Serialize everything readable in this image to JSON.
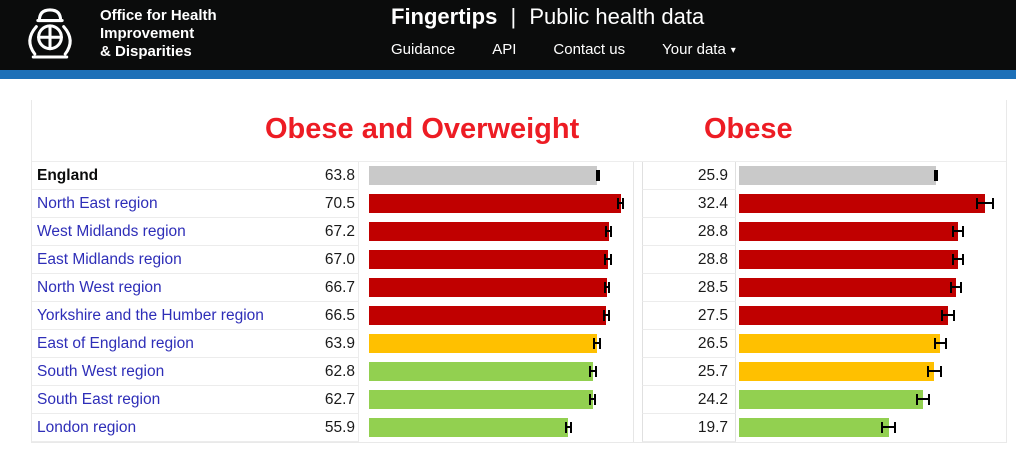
{
  "header": {
    "org_name_lines": [
      "Office for Health",
      "Improvement",
      "& Disparities"
    ],
    "site_title": "Fingertips",
    "title_separator": "|",
    "site_subtitle": "Public health data",
    "nav": [
      {
        "label": "Guidance"
      },
      {
        "label": "API"
      },
      {
        "label": "Contact us"
      },
      {
        "label": "Your data",
        "caret": "▾"
      }
    ]
  },
  "colors": {
    "header_background": "#0b0c0c",
    "accent_blue": "#1d70b8",
    "title_red": "#ed1c24",
    "link_blue": "#2e2eb8",
    "benchmark": "#c9c9c9",
    "worse": "#c00000",
    "similar": "#ffc000",
    "better": "#92d050",
    "error_bar": "#000000"
  },
  "chart_data": [
    {
      "type": "bar",
      "orientation": "horizontal",
      "title": "Obese and Overweight",
      "axis_max": 74,
      "categories": [
        "England",
        "North East region",
        "West Midlands region",
        "East Midlands region",
        "North West region",
        "Yorkshire and the Humber region",
        "East of England region",
        "South West region",
        "South East region",
        "London region"
      ],
      "values": [
        63.8,
        70.5,
        67.2,
        67.0,
        66.7,
        66.5,
        63.9,
        62.8,
        62.7,
        55.9
      ],
      "ci_half_width": [
        0.2,
        0.9,
        1.0,
        1.0,
        0.9,
        1.0,
        1.0,
        1.1,
        1.0,
        1.0
      ],
      "status": [
        "benchmark",
        "worse",
        "worse",
        "worse",
        "worse",
        "worse",
        "similar",
        "better",
        "better",
        "better"
      ]
    },
    {
      "type": "bar",
      "orientation": "horizontal",
      "title": "Obese",
      "axis_max": 35,
      "categories": [
        "England",
        "North East region",
        "West Midlands region",
        "East Midlands region",
        "North West region",
        "Yorkshire and the Humber region",
        "East of England region",
        "South West region",
        "South East region",
        "London region"
      ],
      "values": [
        25.9,
        32.4,
        28.8,
        28.8,
        28.5,
        27.5,
        26.5,
        25.7,
        24.2,
        19.7
      ],
      "ci_half_width": [
        0.2,
        1.2,
        0.8,
        0.8,
        0.8,
        0.9,
        0.9,
        1.0,
        0.9,
        1.0
      ],
      "status": [
        "benchmark",
        "worse",
        "worse",
        "worse",
        "worse",
        "worse",
        "similar",
        "similar",
        "better",
        "better"
      ]
    }
  ]
}
